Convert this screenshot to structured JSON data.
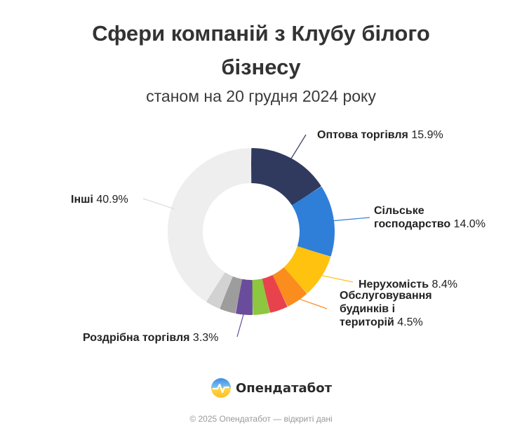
{
  "title": "Сфери компаній з Клубу білого бізнесу",
  "subtitle": "станом на 20 грудня 2024 року",
  "brand": "Опендатабот",
  "footer": "© 2025 Опендатабот — відкриті дані",
  "chart_data": {
    "type": "pie",
    "donut": true,
    "title": "Сфери компаній з Клубу білого бізнесу",
    "subtitle": "станом на 20 грудня 2024 року",
    "slices": [
      {
        "name": "Оптова торгівля",
        "value": 15.9,
        "color": "#2f3a5e",
        "label_lines": [
          "Оптова торгівля"
        ],
        "pct_text": "15.9%"
      },
      {
        "name": "Сільське господарство",
        "value": 14.0,
        "color": "#2f7fd9",
        "label_lines": [
          "Сільське",
          "господарство"
        ],
        "pct_text": "14.0%"
      },
      {
        "name": "Нерухомість",
        "value": 8.4,
        "color": "#ffc20e",
        "label_lines": [
          "Нерухомість"
        ],
        "pct_text": "8.4%"
      },
      {
        "name": "Обслуговування будинків і територій",
        "value": 4.5,
        "color": "#fb8c1e",
        "label_lines": [
          "Обслуговування",
          "будинків і",
          "територій"
        ],
        "pct_text": "4.5%"
      },
      {
        "name": "",
        "value": 3.6,
        "color": "#e8424c",
        "label_lines": [],
        "pct_text": ""
      },
      {
        "name": "",
        "value": 3.3,
        "color": "#8dc63f",
        "label_lines": [],
        "pct_text": ""
      },
      {
        "name": "Роздрібна торгівля",
        "value": 3.3,
        "color": "#6a4c9c",
        "label_lines": [
          "Роздрібна торгівля"
        ],
        "pct_text": "3.3%"
      },
      {
        "name": "",
        "value": 3.2,
        "color": "#9d9d9d",
        "label_lines": [],
        "pct_text": ""
      },
      {
        "name": "",
        "value": 2.9,
        "color": "#d2d2d2",
        "label_lines": [],
        "pct_text": ""
      },
      {
        "name": "Інші",
        "value": 40.9,
        "color": "#eeeeee",
        "label_lines": [
          "Інші"
        ],
        "pct_text": "40.9%"
      }
    ]
  }
}
